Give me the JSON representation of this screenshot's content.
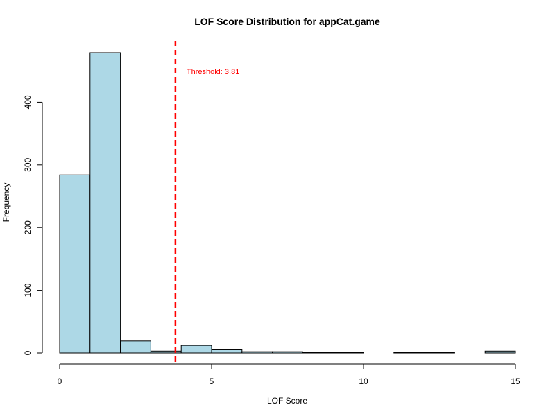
{
  "chart_data": {
    "type": "bar",
    "subtype": "histogram",
    "title": "LOF Score Distribution for appCat.game",
    "xlabel": "LOF Score",
    "ylabel": "Frequency",
    "bins": [
      {
        "start": 0,
        "end": 1,
        "count": 284
      },
      {
        "start": 1,
        "end": 2,
        "count": 479
      },
      {
        "start": 2,
        "end": 3,
        "count": 19
      },
      {
        "start": 3,
        "end": 4,
        "count": 3
      },
      {
        "start": 4,
        "end": 5,
        "count": 12
      },
      {
        "start": 5,
        "end": 6,
        "count": 5
      },
      {
        "start": 6,
        "end": 7,
        "count": 2
      },
      {
        "start": 7,
        "end": 8,
        "count": 2
      },
      {
        "start": 8,
        "end": 9,
        "count": 1
      },
      {
        "start": 9,
        "end": 10,
        "count": 1
      },
      {
        "start": 10,
        "end": 11,
        "count": 0
      },
      {
        "start": 11,
        "end": 12,
        "count": 1
      },
      {
        "start": 12,
        "end": 13,
        "count": 1
      },
      {
        "start": 13,
        "end": 14,
        "count": 0
      },
      {
        "start": 14,
        "end": 15,
        "count": 3
      }
    ],
    "xlim": [
      0,
      15
    ],
    "ylim": [
      0,
      479
    ],
    "x_ticks": [
      0,
      5,
      10,
      15
    ],
    "y_ticks": [
      0,
      100,
      200,
      300,
      400
    ],
    "threshold": {
      "value": 3.81,
      "label": "Threshold: 3.81",
      "color": "#ff0000",
      "style": "dashed"
    },
    "bar_fill": "#add8e6",
    "bar_stroke": "#000000",
    "grid": false,
    "legend": "none"
  }
}
